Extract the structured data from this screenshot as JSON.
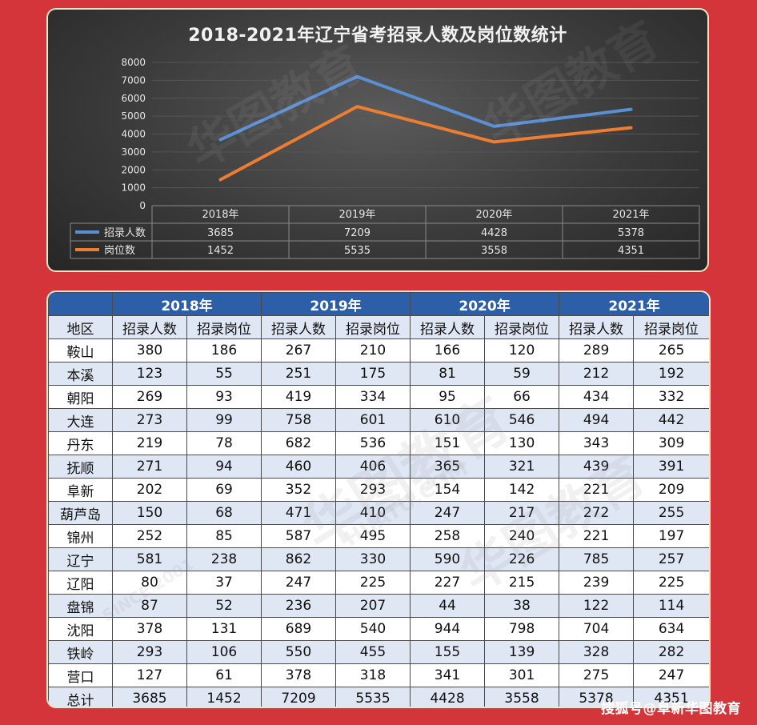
{
  "chart_data": {
    "type": "line",
    "title": "2018-2021年辽宁省考招录人数及岗位数统计",
    "categories": [
      "2018年",
      "2019年",
      "2020年",
      "2021年"
    ],
    "yticks": [
      "8000",
      "7000",
      "6000",
      "5000",
      "4000",
      "3000",
      "2000",
      "1000",
      "0"
    ],
    "ylim": [
      0,
      8000
    ],
    "grid": true,
    "legend": "data-table-below",
    "series": [
      {
        "name": "招录人数",
        "color": "#5b8fd4",
        "values": [
          3685,
          7209,
          4428,
          5378
        ],
        "labels": [
          "3685",
          "7209",
          "4428",
          "5378"
        ]
      },
      {
        "name": "岗位数",
        "color": "#ed7d31",
        "values": [
          1452,
          5535,
          3558,
          4351
        ],
        "labels": [
          "1452",
          "5535",
          "3558",
          "4351"
        ]
      }
    ]
  },
  "table": {
    "years": [
      "2018年",
      "2019年",
      "2020年",
      "2021年"
    ],
    "region_header": "地区",
    "subheaders": [
      "招录人数",
      "招录岗位"
    ],
    "rows": [
      {
        "region": "鞍山",
        "values": [
          "380",
          "186",
          "267",
          "210",
          "166",
          "120",
          "289",
          "265"
        ]
      },
      {
        "region": "本溪",
        "values": [
          "123",
          "55",
          "251",
          "175",
          "81",
          "59",
          "212",
          "192"
        ]
      },
      {
        "region": "朝阳",
        "values": [
          "269",
          "93",
          "419",
          "334",
          "95",
          "66",
          "434",
          "332"
        ]
      },
      {
        "region": "大连",
        "values": [
          "273",
          "99",
          "758",
          "601",
          "610",
          "546",
          "494",
          "442"
        ]
      },
      {
        "region": "丹东",
        "values": [
          "219",
          "78",
          "682",
          "536",
          "151",
          "130",
          "343",
          "309"
        ]
      },
      {
        "region": "抚顺",
        "values": [
          "271",
          "94",
          "460",
          "406",
          "365",
          "321",
          "439",
          "391"
        ]
      },
      {
        "region": "阜新",
        "values": [
          "202",
          "69",
          "352",
          "293",
          "154",
          "142",
          "221",
          "209"
        ]
      },
      {
        "region": "葫芦岛",
        "values": [
          "150",
          "68",
          "471",
          "410",
          "247",
          "217",
          "272",
          "255"
        ]
      },
      {
        "region": "锦州",
        "values": [
          "252",
          "85",
          "587",
          "495",
          "258",
          "240",
          "221",
          "197"
        ]
      },
      {
        "region": "辽宁",
        "values": [
          "581",
          "238",
          "862",
          "330",
          "590",
          "226",
          "785",
          "257"
        ]
      },
      {
        "region": "辽阳",
        "values": [
          "80",
          "37",
          "247",
          "225",
          "227",
          "215",
          "239",
          "225"
        ]
      },
      {
        "region": "盘锦",
        "values": [
          "87",
          "52",
          "236",
          "207",
          "44",
          "38",
          "122",
          "114"
        ]
      },
      {
        "region": "沈阳",
        "values": [
          "378",
          "131",
          "689",
          "540",
          "944",
          "798",
          "704",
          "634"
        ]
      },
      {
        "region": "铁岭",
        "values": [
          "293",
          "106",
          "550",
          "455",
          "155",
          "139",
          "328",
          "282"
        ]
      },
      {
        "region": "营口",
        "values": [
          "127",
          "61",
          "378",
          "318",
          "341",
          "301",
          "275",
          "247"
        ]
      },
      {
        "region": "总计",
        "values": [
          "3685",
          "1452",
          "7209",
          "5535",
          "4428",
          "3558",
          "5378",
          "4351"
        ]
      }
    ]
  },
  "watermark": {
    "text": "搜狐号@阜新华图教育",
    "brand_cn": "华图教育",
    "brand_en": "HUATU.COM",
    "since": "SINCE 2001"
  }
}
